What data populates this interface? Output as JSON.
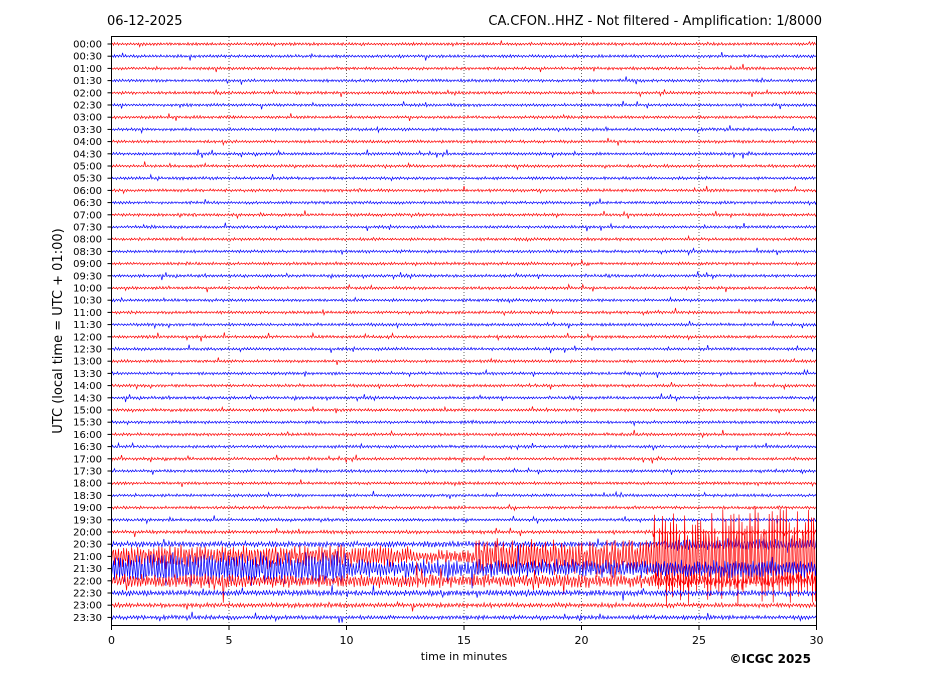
{
  "header": {
    "date": "06-12-2025",
    "station_title": "CA.CFON..HHZ - Not filtered - Amplification: 1/8000"
  },
  "footer": {
    "copyright": "©ICGC 2025"
  },
  "chart_data": {
    "type": "line",
    "title": "CA.CFON..HHZ - Not filtered - Amplification: 1/8000",
    "xlabel": "time in minutes",
    "ylabel": "UTC (local time = UTC + 01:00)",
    "xlim": [
      0,
      30
    ],
    "x_ticks": [
      "0",
      "5",
      "10",
      "15",
      "20",
      "25",
      "30"
    ],
    "x_tick_values": [
      0,
      5,
      10,
      15,
      20,
      25,
      30
    ],
    "grid": "vertical dotted at x ticks",
    "row_labels": [
      "00:00",
      "00:30",
      "01:00",
      "01:30",
      "02:00",
      "02:30",
      "03:00",
      "03:30",
      "04:00",
      "04:30",
      "05:00",
      "05:30",
      "06:00",
      "06:30",
      "07:00",
      "07:30",
      "08:00",
      "08:30",
      "09:00",
      "09:30",
      "10:00",
      "10:30",
      "11:00",
      "11:30",
      "12:00",
      "12:30",
      "13:00",
      "13:30",
      "14:00",
      "14:30",
      "15:00",
      "15:30",
      "16:00",
      "16:30",
      "17:00",
      "17:30",
      "18:00",
      "18:30",
      "19:00",
      "19:30",
      "20:00",
      "20:30",
      "21:00",
      "21:30",
      "22:00",
      "22:30",
      "23:00",
      "23:30"
    ],
    "trace_colors": [
      "#ff0000",
      "#0000ff"
    ],
    "relative_noise_amplitude": [
      0.25,
      0.25,
      0.25,
      0.25,
      0.25,
      0.25,
      0.25,
      0.25,
      0.25,
      0.25,
      0.25,
      0.25,
      0.25,
      0.25,
      0.25,
      0.25,
      0.25,
      0.25,
      0.25,
      0.25,
      0.25,
      0.25,
      0.25,
      0.25,
      0.25,
      0.25,
      0.25,
      0.25,
      0.25,
      0.25,
      0.25,
      0.25,
      0.25,
      0.25,
      0.25,
      0.25,
      0.25,
      0.25,
      0.25,
      0.25,
      0.3,
      0.5,
      1.3,
      1.6,
      1.2,
      0.5,
      0.4,
      0.35
    ],
    "events": [
      {
        "row": "20:30",
        "start_min": 23.5,
        "end_min": 30,
        "relative_amplitude": 0.8
      },
      {
        "row": "21:00",
        "start_min": 0,
        "end_min": 12,
        "relative_amplitude": 1.3
      },
      {
        "row": "21:00",
        "start_min": 15.5,
        "end_min": 30,
        "relative_amplitude": 3.0
      },
      {
        "row": "21:00",
        "start_min": 23,
        "end_min": 30,
        "relative_amplitude": 8.0
      },
      {
        "row": "21:30",
        "start_min": 0,
        "end_min": 10,
        "relative_amplitude": 2.0
      }
    ]
  }
}
